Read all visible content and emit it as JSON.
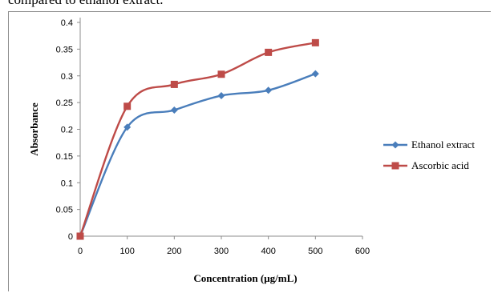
{
  "caption": "compared to ethanol extract.",
  "chart_data": {
    "type": "line",
    "title": "",
    "xlabel": "Concentration (µg/mL)",
    "ylabel": "Absorbance",
    "xlim": [
      0,
      600
    ],
    "ylim": [
      0,
      0.4
    ],
    "x_ticks": [
      "0",
      "100",
      "200",
      "300",
      "400",
      "500",
      "600"
    ],
    "y_ticks": [
      "0",
      "0.05",
      "0.1",
      "0.15",
      "0.2",
      "0.25",
      "0.3",
      "0.35",
      "0.4"
    ],
    "x": [
      0,
      100,
      200,
      300,
      400,
      500
    ],
    "series": [
      {
        "name": "Ethanol extract",
        "values": [
          0,
          0.204,
          0.236,
          0.263,
          0.273,
          0.304
        ],
        "color": "#4a7ebb",
        "marker": "diamond"
      },
      {
        "name": "Ascorbic acid",
        "values": [
          0,
          0.243,
          0.284,
          0.303,
          0.344,
          0.362
        ],
        "color": "#be4b48",
        "marker": "square"
      }
    ],
    "grid": false,
    "legend": "right"
  }
}
